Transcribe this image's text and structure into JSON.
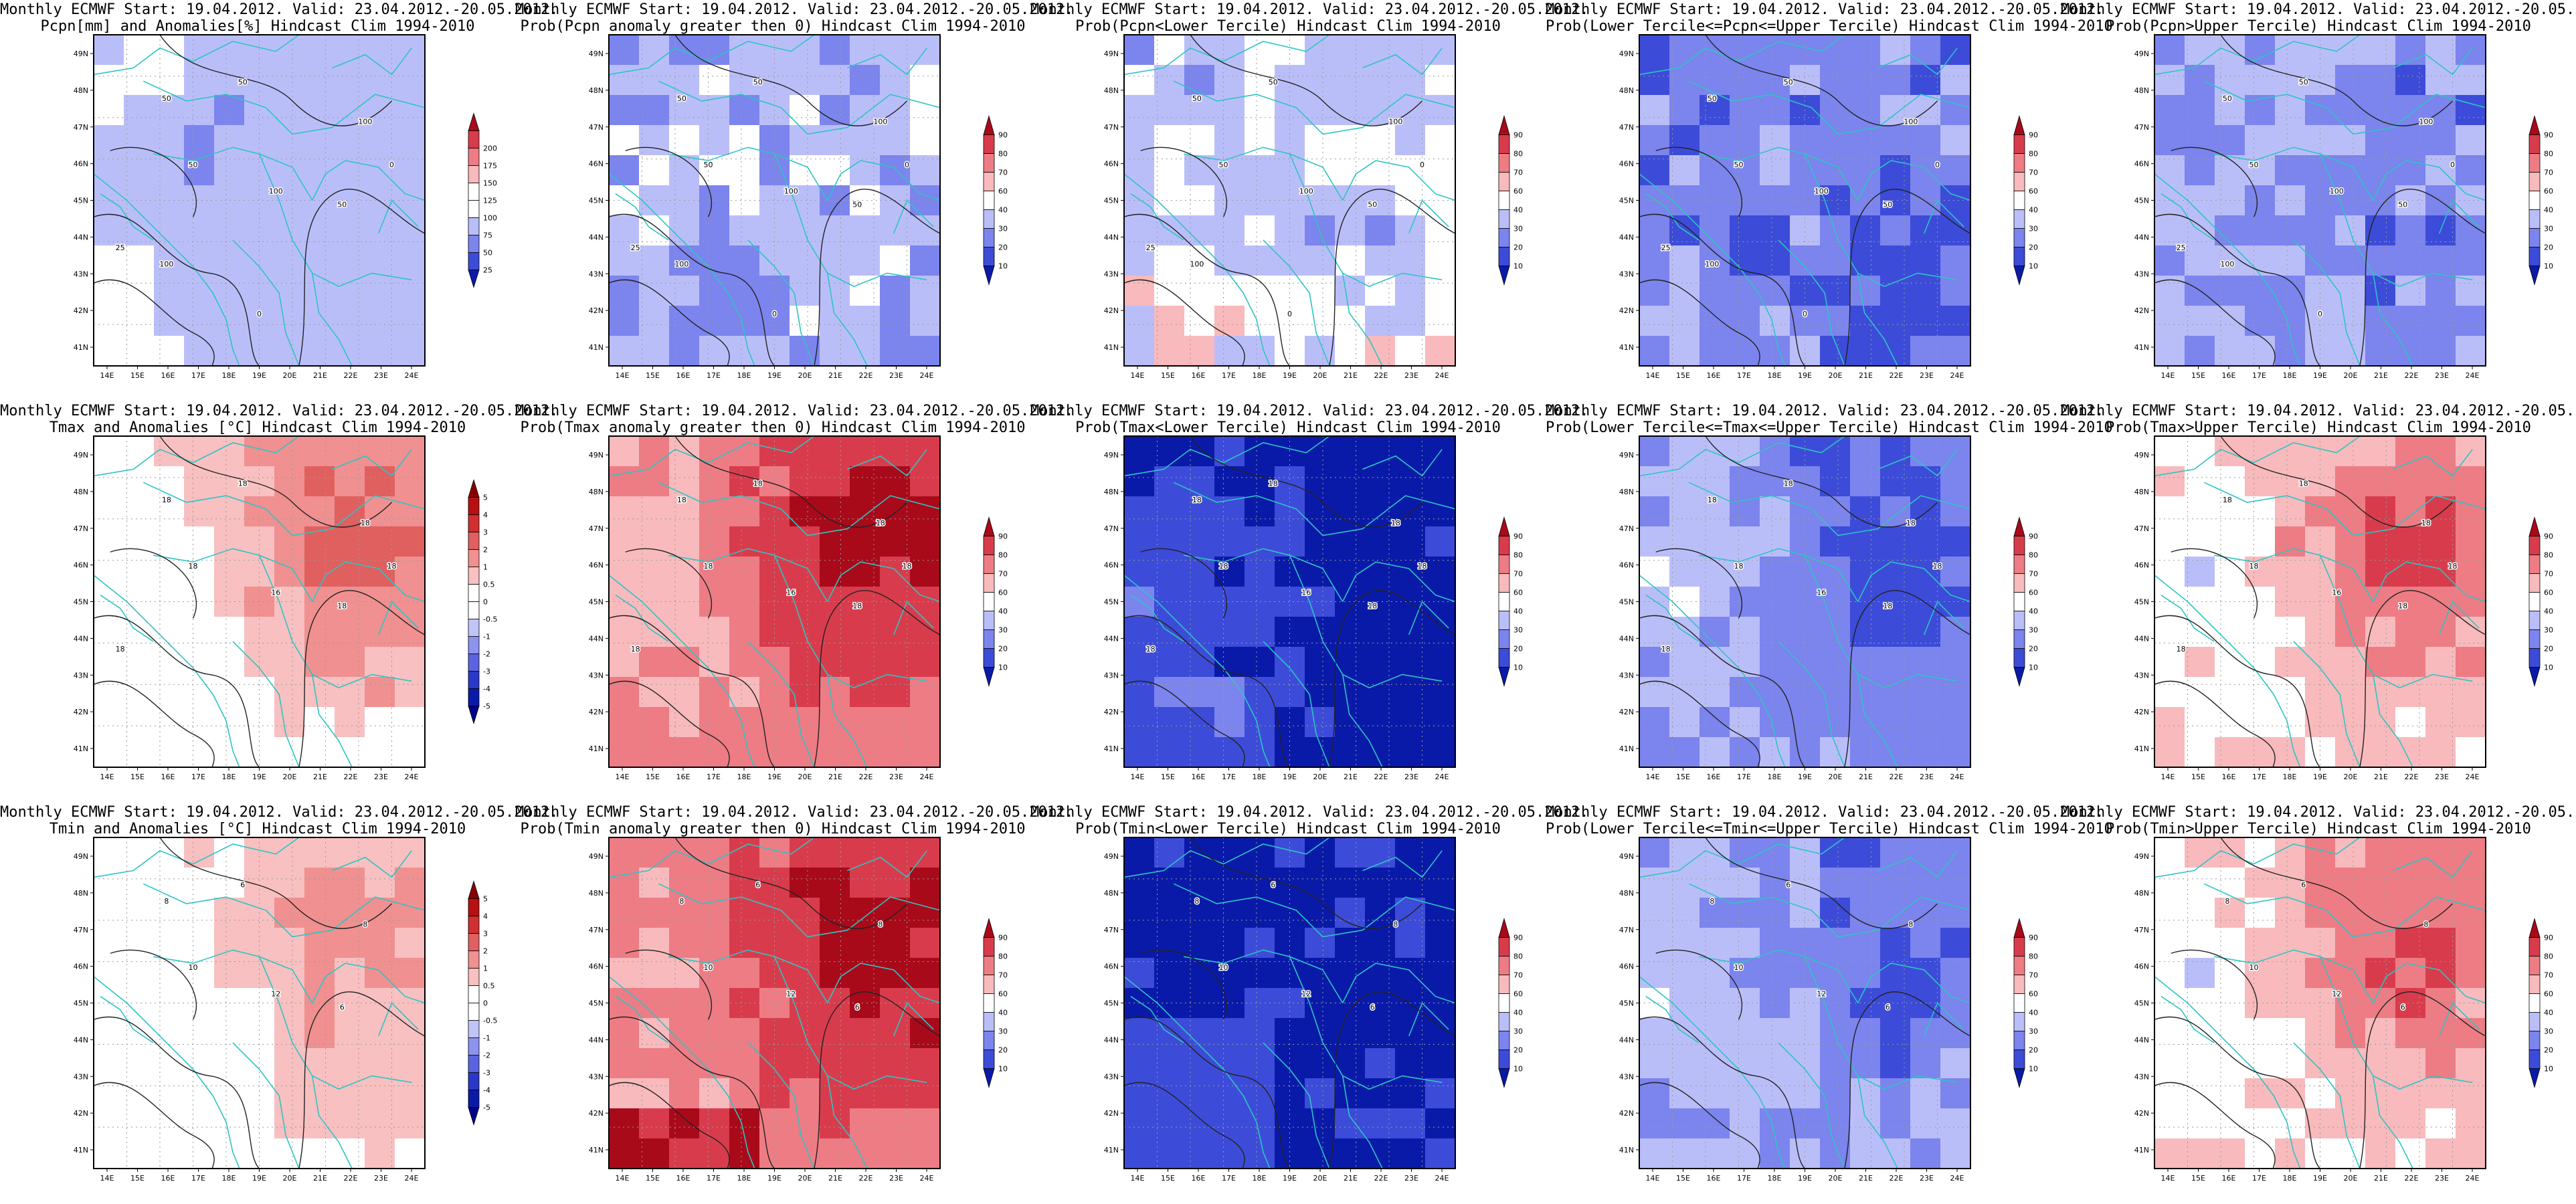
{
  "header": "Monthly ECMWF Start: 19.04.2012. Valid: 23.04.2012.-20.05.2012.",
  "lon_labels": [
    "14E",
    "15E",
    "16E",
    "17E",
    "18E",
    "19E",
    "20E",
    "21E",
    "22E",
    "23E",
    "24E"
  ],
  "lat_labels": [
    "49N",
    "48N",
    "47N",
    "46N",
    "45N",
    "44N",
    "43N",
    "42N",
    "41N"
  ],
  "colorbars": {
    "anom_pcpn": {
      "colors": [
        "#0a1aa8",
        "#3c4cd8",
        "#7c84ee",
        "#babef8",
        "#ffffff",
        "#ffffff",
        "#f8babc",
        "#ee7c84",
        "#d83c4c",
        "#a80a1a"
      ],
      "labels": [
        "25",
        "50",
        "75",
        "100",
        "125",
        "150",
        "175",
        "200"
      ]
    },
    "anom_temp": {
      "colors": [
        "#00008a",
        "#0a1aa8",
        "#2a38c8",
        "#5a64e0",
        "#8c94f0",
        "#c0c4f8",
        "#ffffff",
        "#ffffff",
        "#f8c0c0",
        "#f09090",
        "#e06060",
        "#d03030",
        "#b81010",
        "#8a0000"
      ],
      "labels": [
        "-5",
        "-4",
        "-3",
        "-2",
        "-1",
        "-0.5",
        "0",
        "0.5",
        "1",
        "2",
        "3",
        "4",
        "5"
      ]
    },
    "prob": {
      "colors": [
        "#0a1aa8",
        "#3c4cd8",
        "#7c84ee",
        "#babef8",
        "#ffffff",
        "#f8babc",
        "#ee7c84",
        "#d83c4c",
        "#a80a1a"
      ],
      "labels": [
        "10",
        "20",
        "30",
        "40",
        "60",
        "70",
        "80",
        "90"
      ]
    }
  },
  "panels": [
    {
      "line2": "Pcpn[mm] and Anomalies[%] Hindcast Clim 1994-2010",
      "scale": "anom_pcpn",
      "regime": "p_anom",
      "contour_labels": [
        "50",
        "50",
        "100",
        "50",
        "100",
        "50",
        "0",
        "25",
        "100",
        "0"
      ]
    },
    {
      "line2": "Prob(Pcpn anomaly greater then 0) Hindcast Clim 1994-2010",
      "scale": "prob",
      "regime": "p_gt0",
      "contour_labels": [
        "50",
        "50",
        "100",
        "50",
        "100",
        "50",
        "0",
        "25",
        "100",
        "0"
      ]
    },
    {
      "line2": "Prob(Pcpn<Lower Tercile) Hindcast Clim 1994-2010",
      "scale": "prob",
      "regime": "p_low",
      "contour_labels": [
        "50",
        "50",
        "100",
        "50",
        "100",
        "50",
        "0",
        "25",
        "100",
        "0"
      ]
    },
    {
      "line2": "Prob(Lower Tercile<=Pcpn<=Upper Tercile) Hindcast Clim 1994-2010",
      "scale": "prob",
      "regime": "p_mid",
      "contour_labels": [
        "50",
        "50",
        "100",
        "50",
        "100",
        "50",
        "0",
        "25",
        "100",
        "0"
      ]
    },
    {
      "line2": "Prob(Pcpn>Upper Tercile) Hindcast Clim 1994-2010",
      "scale": "prob",
      "regime": "p_up",
      "contour_labels": [
        "50",
        "50",
        "100",
        "50",
        "100",
        "50",
        "0",
        "25",
        "100",
        "0"
      ]
    },
    {
      "line2": "Tmax and Anomalies [°C] Hindcast Clim 1994-2010",
      "scale": "anom_temp",
      "regime": "tx_anom",
      "contour_labels": [
        "18",
        "18",
        "18",
        "18",
        "16",
        "18",
        "18",
        "18"
      ]
    },
    {
      "line2": "Prob(Tmax anomaly greater then 0) Hindcast Clim 1994-2010",
      "scale": "prob",
      "regime": "tx_gt0",
      "contour_labels": [
        "18",
        "18",
        "18",
        "18",
        "16",
        "18",
        "18",
        "18"
      ]
    },
    {
      "line2": "Prob(Tmax<Lower Tercile) Hindcast Clim 1994-2010",
      "scale": "prob",
      "regime": "tx_low",
      "contour_labels": [
        "18",
        "18",
        "18",
        "18",
        "16",
        "18",
        "18",
        "18"
      ]
    },
    {
      "line2": "Prob(Lower Tercile<=Tmax<=Upper Tercile) Hindcast Clim 1994-2010",
      "scale": "prob",
      "regime": "tx_mid",
      "contour_labels": [
        "18",
        "18",
        "18",
        "18",
        "16",
        "18",
        "18",
        "18"
      ]
    },
    {
      "line2": "Prob(Tmax>Upper Tercile) Hindcast Clim 1994-2010",
      "scale": "prob",
      "regime": "tx_up",
      "contour_labels": [
        "18",
        "18",
        "18",
        "18",
        "16",
        "18",
        "18",
        "18"
      ]
    },
    {
      "line2": "Tmin and Anomalies [°C] Hindcast Clim 1994-2010",
      "scale": "anom_temp",
      "regime": "tn_anom",
      "contour_labels": [
        "8",
        "6",
        "8",
        "10",
        "12",
        "6"
      ]
    },
    {
      "line2": "Prob(Tmin anomaly greater then 0) Hindcast Clim 1994-2010",
      "scale": "prob",
      "regime": "tn_gt0",
      "contour_labels": [
        "8",
        "6",
        "8",
        "10",
        "12",
        "6"
      ]
    },
    {
      "line2": "Prob(Tmin<Lower Tercile) Hindcast Clim 1994-2010",
      "scale": "prob",
      "regime": "tn_low",
      "contour_labels": [
        "8",
        "6",
        "8",
        "10",
        "12",
        "6"
      ]
    },
    {
      "line2": "Prob(Lower Tercile<=Tmin<=Upper Tercile) Hindcast Clim 1994-2010",
      "scale": "prob",
      "regime": "tn_mid",
      "contour_labels": [
        "8",
        "6",
        "8",
        "10",
        "12",
        "6"
      ]
    },
    {
      "line2": "Prob(Tmin>Upper Tercile) Hindcast Clim 1994-2010",
      "scale": "prob",
      "regime": "tn_up",
      "contour_labels": [
        "8",
        "6",
        "8",
        "10",
        "12",
        "6"
      ]
    }
  ]
}
